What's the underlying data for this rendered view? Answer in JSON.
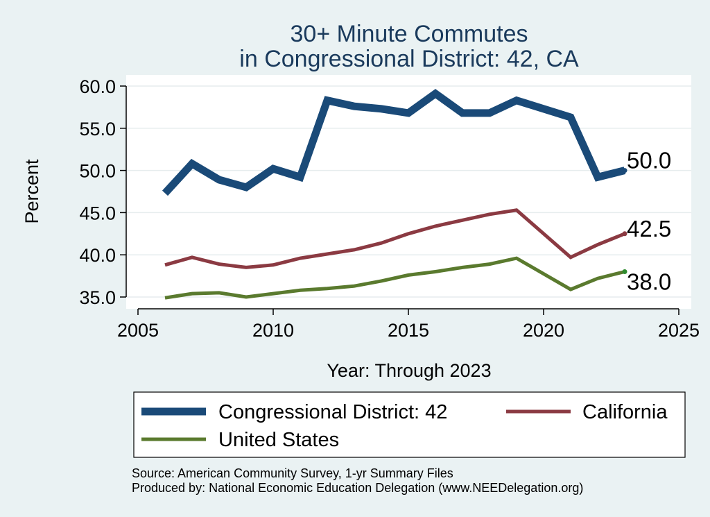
{
  "chart_data": {
    "type": "line",
    "title": [
      "30+ Minute Commutes",
      "in Congressional District:  42, CA"
    ],
    "xlabel": "Year: Through 2023",
    "ylabel": "Percent",
    "xlim": [
      2005,
      2025
    ],
    "ylim": [
      35,
      60
    ],
    "xticks": [
      2005,
      2010,
      2015,
      2020,
      2025
    ],
    "yticks": [
      35,
      40,
      45,
      50,
      55,
      60
    ],
    "ytick_labels": [
      "35.0",
      "40.0",
      "45.0",
      "50.0",
      "55.0",
      "60.0"
    ],
    "grid": "horizontal",
    "x": [
      2006,
      2007,
      2008,
      2009,
      2010,
      2011,
      2012,
      2013,
      2014,
      2015,
      2016,
      2017,
      2018,
      2019,
      2021,
      2022,
      2023
    ],
    "series": [
      {
        "name": "Congressional District:  42",
        "color": "#1a4a78",
        "values": [
          47.3,
          50.8,
          48.9,
          48.0,
          50.2,
          49.2,
          58.3,
          57.6,
          57.3,
          56.8,
          59.1,
          56.8,
          56.8,
          58.3,
          56.3,
          49.2,
          50.0
        ],
        "end_label": "50.0"
      },
      {
        "name": "California",
        "color": "#8b3a42",
        "values": [
          38.8,
          39.7,
          38.9,
          38.5,
          38.8,
          39.6,
          40.1,
          40.6,
          41.4,
          42.5,
          43.4,
          44.1,
          44.8,
          45.3,
          39.7,
          41.2,
          42.5
        ],
        "end_label": "42.5"
      },
      {
        "name": "United States",
        "color": "#5a7a2e",
        "values": [
          34.9,
          35.4,
          35.5,
          35.0,
          35.4,
          35.8,
          36.0,
          36.3,
          36.9,
          37.6,
          38.0,
          38.5,
          38.9,
          39.6,
          35.9,
          37.2,
          38.0
        ],
        "end_label": "38.0"
      }
    ],
    "legend_position": "bottom"
  },
  "source": {
    "line1": "Source: American Community Survey, 1-yr Summary Files",
    "line2": "Produced by: National Economic Education Delegation (www.NEEDelegation.org)"
  }
}
